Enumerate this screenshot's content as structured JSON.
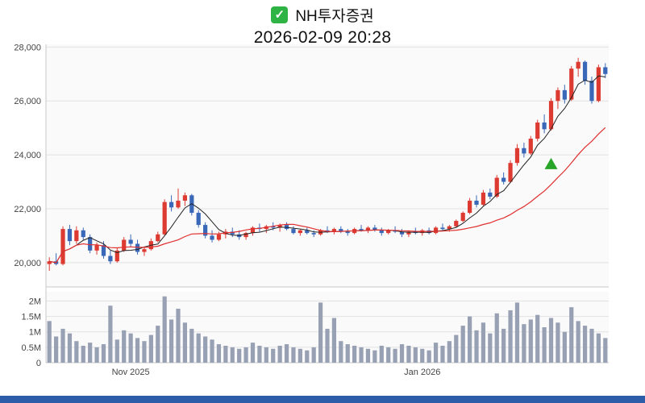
{
  "header": {
    "checkmark": "✓",
    "title": "NH투자증권",
    "subtitle": "2026-02-09 20:28"
  },
  "colors": {
    "up": "#dd3b32",
    "down": "#3a68b8",
    "ma_fast": "#222222",
    "ma_slow": "#e03030",
    "volume_bar": "#98a0b4",
    "marker": "#28a428",
    "grid": "#e2e2e2",
    "axis_line": "#c8c8c8",
    "plot_bg": "#fafafa",
    "axis_text": "#444444",
    "bottom_bar": "#2d5da9",
    "checkbox": "#2fb344"
  },
  "chart_data": {
    "type": "candlestick",
    "title": "NH투자증권",
    "timestamp": "2026-02-09 20:28",
    "legend": "none",
    "grid": "horizontal",
    "y_axis": {
      "ticks": [
        20000,
        22000,
        24000,
        26000,
        28000
      ],
      "tick_labels": [
        "20,000",
        "22,000",
        "24,000",
        "26,000",
        "28,000"
      ],
      "ylim": [
        19100,
        28100
      ]
    },
    "volume_axis": {
      "ticks": [
        0,
        0.5,
        1,
        1.5,
        2
      ],
      "tick_labels": [
        "0",
        "0.5M",
        "1M",
        "1.5M",
        "2M"
      ],
      "vmax": 2.3
    },
    "x_labels": [
      {
        "index": 12,
        "label": "Nov 2025"
      },
      {
        "index": 55,
        "label": "Jan 2026"
      }
    ],
    "moving_averages": [
      {
        "name": "fast-ma",
        "period": 5,
        "color_key": "ma_fast",
        "width": 1.0
      },
      {
        "name": "slow-ma",
        "period": 20,
        "color_key": "ma_slow",
        "width": 1.2
      }
    ],
    "marker": {
      "index": 74,
      "price": 23650,
      "shape": "triangle-up"
    },
    "candles": [
      [
        19950,
        20200,
        19700,
        20050
      ],
      [
        20050,
        20350,
        19900,
        19950
      ],
      [
        19950,
        21350,
        19900,
        21250
      ],
      [
        21250,
        21400,
        20650,
        20800
      ],
      [
        20800,
        21350,
        20700,
        21200
      ],
      [
        21200,
        21300,
        20850,
        20950
      ],
      [
        20950,
        21050,
        20350,
        20450
      ],
      [
        20450,
        20750,
        20300,
        20650
      ],
      [
        20650,
        20800,
        20150,
        20250
      ],
      [
        20250,
        20450,
        19950,
        20050
      ],
      [
        20050,
        20550,
        20000,
        20450
      ],
      [
        20450,
        20950,
        20400,
        20850
      ],
      [
        20850,
        21050,
        20600,
        20700
      ],
      [
        20700,
        20850,
        20300,
        20400
      ],
      [
        20400,
        20600,
        20250,
        20500
      ],
      [
        20500,
        20900,
        20450,
        20800
      ],
      [
        20800,
        21150,
        20750,
        21050
      ],
      [
        21050,
        22350,
        21000,
        22250
      ],
      [
        22250,
        22500,
        21900,
        22050
      ],
      [
        22050,
        22750,
        22000,
        22300
      ],
      [
        22300,
        22600,
        22100,
        22500
      ],
      [
        22500,
        22550,
        21750,
        21850
      ],
      [
        21850,
        21950,
        21300,
        21400
      ],
      [
        21400,
        21500,
        20900,
        21000
      ],
      [
        21000,
        21200,
        20750,
        20850
      ],
      [
        20850,
        21150,
        20800,
        21050
      ],
      [
        21050,
        21250,
        20900,
        21150
      ],
      [
        21150,
        21300,
        20950,
        21050
      ],
      [
        21050,
        21200,
        20850,
        20950
      ],
      [
        20950,
        21150,
        20850,
        21100
      ],
      [
        21100,
        21350,
        21000,
        21300
      ],
      [
        21300,
        21450,
        21150,
        21250
      ],
      [
        21250,
        21400,
        21100,
        21350
      ],
      [
        21350,
        21500,
        21200,
        21300
      ],
      [
        21300,
        21450,
        21150,
        21400
      ],
      [
        21400,
        21500,
        21200,
        21250
      ],
      [
        21250,
        21350,
        21050,
        21100
      ],
      [
        21100,
        21250,
        21000,
        21200
      ],
      [
        21200,
        21300,
        21050,
        21100
      ],
      [
        21100,
        21200,
        20950,
        21050
      ],
      [
        21050,
        21250,
        21000,
        21200
      ],
      [
        21200,
        21350,
        21100,
        21150
      ],
      [
        21150,
        21300,
        21050,
        21250
      ],
      [
        21250,
        21350,
        21100,
        21150
      ],
      [
        21150,
        21250,
        21000,
        21100
      ],
      [
        21100,
        21300,
        21050,
        21250
      ],
      [
        21250,
        21400,
        21150,
        21200
      ],
      [
        21200,
        21350,
        21100,
        21300
      ],
      [
        21300,
        21400,
        21150,
        21200
      ],
      [
        21200,
        21300,
        21000,
        21100
      ],
      [
        21100,
        21250,
        21050,
        21200
      ],
      [
        21200,
        21350,
        21100,
        21150
      ],
      [
        21150,
        21250,
        20950,
        21050
      ],
      [
        21050,
        21200,
        20950,
        21150
      ],
      [
        21150,
        21300,
        21050,
        21100
      ],
      [
        21100,
        21250,
        21000,
        21200
      ],
      [
        21200,
        21300,
        21050,
        21100
      ],
      [
        21100,
        21350,
        21050,
        21300
      ],
      [
        21300,
        21450,
        21200,
        21250
      ],
      [
        21250,
        21400,
        21150,
        21350
      ],
      [
        21350,
        21600,
        21300,
        21550
      ],
      [
        21550,
        21900,
        21500,
        21850
      ],
      [
        21850,
        22400,
        21800,
        22300
      ],
      [
        22300,
        22500,
        22050,
        22150
      ],
      [
        22150,
        22700,
        22100,
        22600
      ],
      [
        22600,
        22750,
        22350,
        22450
      ],
      [
        22450,
        23250,
        22400,
        23150
      ],
      [
        23150,
        23350,
        22900,
        23000
      ],
      [
        23000,
        23800,
        22950,
        23700
      ],
      [
        23700,
        24400,
        23600,
        24250
      ],
      [
        24250,
        24450,
        23900,
        24050
      ],
      [
        24050,
        24700,
        24000,
        24600
      ],
      [
        24600,
        25300,
        24500,
        25200
      ],
      [
        25200,
        25500,
        24800,
        24950
      ],
      [
        24950,
        26100,
        24900,
        26000
      ],
      [
        26000,
        26500,
        25700,
        26400
      ],
      [
        26400,
        26600,
        25900,
        26050
      ],
      [
        26050,
        27300,
        26000,
        27200
      ],
      [
        27200,
        27600,
        26900,
        27450
      ],
      [
        27450,
        27500,
        26600,
        26750
      ],
      [
        26750,
        26900,
        25900,
        26000
      ],
      [
        26000,
        27350,
        25950,
        27250
      ],
      [
        27250,
        27400,
        26850,
        27000
      ]
    ],
    "volumes": [
      1.35,
      0.85,
      1.1,
      0.95,
      0.7,
      0.55,
      0.65,
      0.5,
      0.6,
      1.85,
      0.75,
      1.05,
      0.95,
      0.8,
      0.7,
      0.9,
      1.2,
      2.15,
      1.4,
      1.75,
      1.3,
      1.1,
      0.95,
      0.85,
      0.75,
      0.6,
      0.55,
      0.5,
      0.45,
      0.5,
      0.65,
      0.55,
      0.5,
      0.45,
      0.55,
      0.6,
      0.5,
      0.45,
      0.4,
      0.5,
      1.95,
      1.1,
      1.45,
      0.7,
      0.6,
      0.55,
      0.5,
      0.45,
      0.4,
      0.55,
      0.5,
      0.45,
      0.6,
      0.55,
      0.5,
      0.45,
      0.4,
      0.65,
      0.55,
      0.7,
      0.9,
      1.2,
      1.5,
      1.05,
      1.3,
      0.95,
      1.6,
      1.1,
      1.7,
      1.95,
      1.25,
      1.4,
      1.55,
      1.15,
      1.45,
      1.3,
      1.0,
      1.8,
      1.35,
      1.2,
      1.1,
      0.95,
      0.8
    ]
  }
}
